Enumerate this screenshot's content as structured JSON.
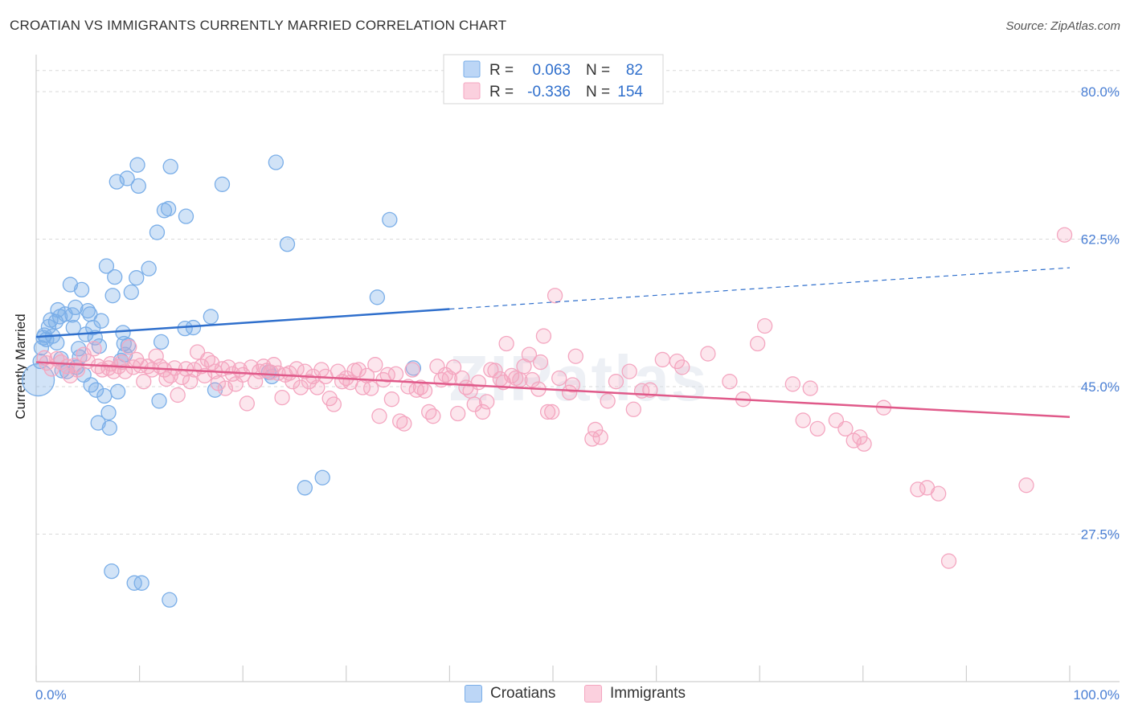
{
  "title": "CROATIAN VS IMMIGRANTS CURRENTLY MARRIED CORRELATION CHART",
  "source": "Source: ZipAtlas.com",
  "watermark": "ZIPatlas",
  "chart_data": {
    "type": "scatter",
    "ylabel": "Currently Married",
    "xlim": [
      0,
      100
    ],
    "ylim": [
      10,
      84
    ],
    "x_tick_labels": [
      "0.0%",
      "100.0%"
    ],
    "y_ticks": [
      27.5,
      45.0,
      62.5,
      80.0
    ],
    "y_tick_labels": [
      "27.5%",
      "45.0%",
      "62.5%",
      "80.0%"
    ],
    "grid": true,
    "legend_position": "top-center",
    "series": [
      {
        "name": "Croatians",
        "color": "#7aaee8",
        "line_color": "#2f6fcc",
        "R": "0.063",
        "N": "82",
        "trend": {
          "x0": 0,
          "y0": 50.9,
          "x1": 40,
          "y1": 54.2,
          "x_dash_end": 100,
          "y_dash_end": 59.1
        },
        "points": [
          [
            0.2,
            45.8
          ],
          [
            0.4,
            48.0
          ],
          [
            0.5,
            49.6
          ],
          [
            0.7,
            50.8
          ],
          [
            0.8,
            51.1
          ],
          [
            1.0,
            50.6
          ],
          [
            1.2,
            52.1
          ],
          [
            1.4,
            52.9
          ],
          [
            1.6,
            51.0
          ],
          [
            1.9,
            52.7
          ],
          [
            2.0,
            50.2
          ],
          [
            2.1,
            54.1
          ],
          [
            2.3,
            53.3
          ],
          [
            2.4,
            48.3
          ],
          [
            2.5,
            46.9
          ],
          [
            2.8,
            53.6
          ],
          [
            3.0,
            46.8
          ],
          [
            3.3,
            57.1
          ],
          [
            3.5,
            53.5
          ],
          [
            3.6,
            52.0
          ],
          [
            3.8,
            54.4
          ],
          [
            3.9,
            47.3
          ],
          [
            4.1,
            49.5
          ],
          [
            4.2,
            48.5
          ],
          [
            4.4,
            56.5
          ],
          [
            4.6,
            46.4
          ],
          [
            4.8,
            51.2
          ],
          [
            5.0,
            54.0
          ],
          [
            5.2,
            53.6
          ],
          [
            5.3,
            45.2
          ],
          [
            5.5,
            52.0
          ],
          [
            5.7,
            50.8
          ],
          [
            5.8,
            44.6
          ],
          [
            6.0,
            40.7
          ],
          [
            6.1,
            49.8
          ],
          [
            6.3,
            52.8
          ],
          [
            6.6,
            43.9
          ],
          [
            6.8,
            59.3
          ],
          [
            7.0,
            41.9
          ],
          [
            7.1,
            40.1
          ],
          [
            7.4,
            55.8
          ],
          [
            7.6,
            58.0
          ],
          [
            7.9,
            44.4
          ],
          [
            7.8,
            69.3
          ],
          [
            8.2,
            48.1
          ],
          [
            8.4,
            51.4
          ],
          [
            8.5,
            50.1
          ],
          [
            8.6,
            48.8
          ],
          [
            8.8,
            69.7
          ],
          [
            8.9,
            49.9
          ],
          [
            9.2,
            56.2
          ],
          [
            9.7,
            57.9
          ],
          [
            9.8,
            71.3
          ],
          [
            9.9,
            68.8
          ],
          [
            10.9,
            59.0
          ],
          [
            11.7,
            63.3
          ],
          [
            11.9,
            43.3
          ],
          [
            12.1,
            50.3
          ],
          [
            12.4,
            65.9
          ],
          [
            12.8,
            66.1
          ],
          [
            13.0,
            71.1
          ],
          [
            14.4,
            51.9
          ],
          [
            14.5,
            65.2
          ],
          [
            15.2,
            52.0
          ],
          [
            16.9,
            53.3
          ],
          [
            17.3,
            44.6
          ],
          [
            18.0,
            69.0
          ],
          [
            22.5,
            46.7
          ],
          [
            22.8,
            46.2
          ],
          [
            23.2,
            71.6
          ],
          [
            24.3,
            61.9
          ],
          [
            26.0,
            33.0
          ],
          [
            27.7,
            34.2
          ],
          [
            33.0,
            55.6
          ],
          [
            34.2,
            64.8
          ],
          [
            36.5,
            47.2
          ],
          [
            7.3,
            23.1
          ],
          [
            9.5,
            21.7
          ],
          [
            10.2,
            21.7
          ],
          [
            12.9,
            19.7
          ]
        ]
      },
      {
        "name": "Immigrants",
        "color": "#f4a6c0",
        "line_color": "#e05a8a",
        "R": "-0.336",
        "N": "154",
        "trend": {
          "x0": 0,
          "y0": 47.9,
          "x1": 100,
          "y1": 41.4
        },
        "points": [
          [
            0.8,
            48.4
          ],
          [
            1.0,
            47.8
          ],
          [
            1.5,
            47.1
          ],
          [
            2.0,
            48.3
          ],
          [
            2.4,
            47.9
          ],
          [
            3.0,
            47.4
          ],
          [
            3.3,
            46.3
          ],
          [
            3.7,
            47.5
          ],
          [
            4.0,
            47.0
          ],
          [
            4.6,
            48.8
          ],
          [
            5.0,
            48.0
          ],
          [
            5.6,
            49.5
          ],
          [
            6.0,
            47.4
          ],
          [
            6.4,
            47.0
          ],
          [
            7.0,
            47.2
          ],
          [
            7.2,
            47.7
          ],
          [
            7.5,
            46.8
          ],
          [
            8.0,
            47.4
          ],
          [
            8.3,
            47.9
          ],
          [
            8.6,
            46.8
          ],
          [
            9.0,
            49.7
          ],
          [
            9.4,
            47.3
          ],
          [
            9.7,
            48.2
          ],
          [
            10.1,
            47.5
          ],
          [
            10.4,
            45.6
          ],
          [
            10.8,
            47.4
          ],
          [
            11.2,
            47.0
          ],
          [
            11.6,
            48.6
          ],
          [
            12.0,
            47.4
          ],
          [
            12.4,
            47.0
          ],
          [
            12.6,
            45.9
          ],
          [
            13.0,
            46.3
          ],
          [
            13.4,
            47.2
          ],
          [
            13.7,
            44.0
          ],
          [
            14.1,
            46.1
          ],
          [
            14.5,
            47.1
          ],
          [
            14.9,
            45.6
          ],
          [
            15.3,
            47.0
          ],
          [
            15.6,
            49.1
          ],
          [
            16.0,
            47.4
          ],
          [
            16.3,
            46.3
          ],
          [
            16.6,
            48.2
          ],
          [
            17.0,
            47.8
          ],
          [
            17.3,
            46.8
          ],
          [
            17.6,
            45.4
          ],
          [
            18.0,
            47.1
          ],
          [
            18.3,
            44.8
          ],
          [
            18.6,
            47.3
          ],
          [
            19.0,
            46.5
          ],
          [
            19.3,
            45.3
          ],
          [
            19.7,
            47.0
          ],
          [
            20.0,
            46.4
          ],
          [
            20.4,
            43.0
          ],
          [
            20.8,
            47.3
          ],
          [
            21.2,
            45.6
          ],
          [
            21.6,
            46.8
          ],
          [
            22.0,
            47.4
          ],
          [
            22.3,
            46.9
          ],
          [
            22.7,
            46.7
          ],
          [
            23.0,
            47.6
          ],
          [
            23.4,
            46.6
          ],
          [
            23.8,
            43.7
          ],
          [
            24.1,
            46.4
          ],
          [
            24.5,
            46.6
          ],
          [
            24.8,
            45.6
          ],
          [
            25.2,
            47.1
          ],
          [
            25.6,
            44.9
          ],
          [
            26.0,
            46.8
          ],
          [
            26.4,
            45.6
          ],
          [
            26.8,
            46.2
          ],
          [
            27.2,
            44.9
          ],
          [
            27.6,
            47.0
          ],
          [
            28.0,
            46.2
          ],
          [
            28.4,
            43.6
          ],
          [
            28.8,
            42.9
          ],
          [
            29.2,
            46.8
          ],
          [
            29.6,
            45.6
          ],
          [
            30.0,
            46.0
          ],
          [
            30.4,
            45.5
          ],
          [
            30.8,
            46.9
          ],
          [
            31.2,
            47.0
          ],
          [
            31.6,
            44.9
          ],
          [
            32.0,
            46.3
          ],
          [
            32.4,
            44.8
          ],
          [
            32.8,
            47.6
          ],
          [
            33.2,
            41.5
          ],
          [
            33.6,
            45.8
          ],
          [
            34.0,
            46.4
          ],
          [
            34.4,
            43.5
          ],
          [
            34.8,
            46.5
          ],
          [
            35.2,
            40.9
          ],
          [
            35.6,
            40.6
          ],
          [
            36.0,
            45.0
          ],
          [
            36.4,
            47.0
          ],
          [
            36.8,
            44.6
          ],
          [
            37.2,
            44.9
          ],
          [
            37.6,
            44.5
          ],
          [
            38.0,
            42.0
          ],
          [
            38.4,
            41.5
          ],
          [
            38.8,
            47.4
          ],
          [
            39.2,
            45.8
          ],
          [
            39.6,
            46.4
          ],
          [
            40.0,
            46.0
          ],
          [
            40.4,
            47.3
          ],
          [
            40.8,
            41.8
          ],
          [
            41.2,
            46.0
          ],
          [
            41.6,
            44.9
          ],
          [
            42.0,
            44.5
          ],
          [
            42.4,
            42.9
          ],
          [
            42.8,
            45.5
          ],
          [
            43.2,
            42.0
          ],
          [
            43.6,
            43.2
          ],
          [
            44.0,
            47.0
          ],
          [
            44.4,
            46.9
          ],
          [
            44.9,
            45.9
          ],
          [
            45.2,
            45.5
          ],
          [
            45.5,
            50.1
          ],
          [
            46.0,
            46.3
          ],
          [
            46.4,
            46.0
          ],
          [
            46.8,
            45.8
          ],
          [
            47.2,
            47.4
          ],
          [
            47.7,
            48.8
          ],
          [
            48.0,
            45.8
          ],
          [
            48.6,
            44.7
          ],
          [
            48.8,
            47.9
          ],
          [
            49.1,
            51.0
          ],
          [
            49.5,
            42.0
          ],
          [
            49.9,
            42.0
          ],
          [
            50.2,
            55.8
          ],
          [
            50.6,
            46.0
          ],
          [
            51.6,
            44.3
          ],
          [
            51.9,
            45.2
          ],
          [
            52.2,
            48.6
          ],
          [
            53.8,
            38.8
          ],
          [
            54.1,
            39.9
          ],
          [
            54.6,
            39.0
          ],
          [
            55.3,
            43.3
          ],
          [
            56.1,
            45.6
          ],
          [
            57.4,
            46.8
          ],
          [
            57.8,
            42.3
          ],
          [
            58.6,
            44.5
          ],
          [
            59.4,
            44.6
          ],
          [
            60.6,
            48.2
          ],
          [
            62.0,
            48.0
          ],
          [
            62.5,
            47.3
          ],
          [
            65.0,
            48.9
          ],
          [
            67.1,
            45.6
          ],
          [
            68.4,
            43.5
          ],
          [
            69.8,
            50.1
          ],
          [
            70.5,
            52.2
          ],
          [
            73.2,
            45.3
          ],
          [
            74.9,
            44.8
          ],
          [
            74.2,
            41.0
          ],
          [
            75.6,
            40.0
          ],
          [
            77.4,
            41.0
          ],
          [
            78.3,
            40.0
          ],
          [
            79.1,
            38.6
          ],
          [
            79.7,
            39.0
          ],
          [
            80.1,
            38.2
          ],
          [
            82.0,
            42.5
          ],
          [
            85.3,
            32.8
          ],
          [
            86.2,
            33.0
          ],
          [
            87.3,
            32.3
          ],
          [
            88.3,
            24.3
          ],
          [
            95.8,
            33.3
          ],
          [
            99.5,
            63.0
          ]
        ]
      }
    ]
  }
}
